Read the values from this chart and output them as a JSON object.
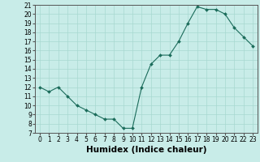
{
  "x": [
    0,
    1,
    2,
    3,
    4,
    5,
    6,
    7,
    8,
    9,
    10,
    11,
    12,
    13,
    14,
    15,
    16,
    17,
    18,
    19,
    20,
    21,
    22,
    23
  ],
  "y": [
    12.0,
    11.5,
    12.0,
    11.0,
    10.0,
    9.5,
    9.0,
    8.5,
    8.5,
    7.5,
    7.5,
    12.0,
    14.5,
    15.5,
    15.5,
    17.0,
    19.0,
    20.8,
    20.5,
    20.5,
    20.0,
    18.5,
    17.5,
    16.5
  ],
  "ylim": [
    7,
    21
  ],
  "xlim": [
    -0.5,
    23.5
  ],
  "yticks": [
    7,
    8,
    9,
    10,
    11,
    12,
    13,
    14,
    15,
    16,
    17,
    18,
    19,
    20,
    21
  ],
  "xticks": [
    0,
    1,
    2,
    3,
    4,
    5,
    6,
    7,
    8,
    9,
    10,
    11,
    12,
    13,
    14,
    15,
    16,
    17,
    18,
    19,
    20,
    21,
    22,
    23
  ],
  "xlabel": "Humidex (Indice chaleur)",
  "line_color": "#1a6b5a",
  "marker_color": "#1a6b5a",
  "bg_color": "#c8ece8",
  "grid_color": "#a8d8d0",
  "tick_fontsize": 5.5,
  "label_fontsize": 7.5
}
